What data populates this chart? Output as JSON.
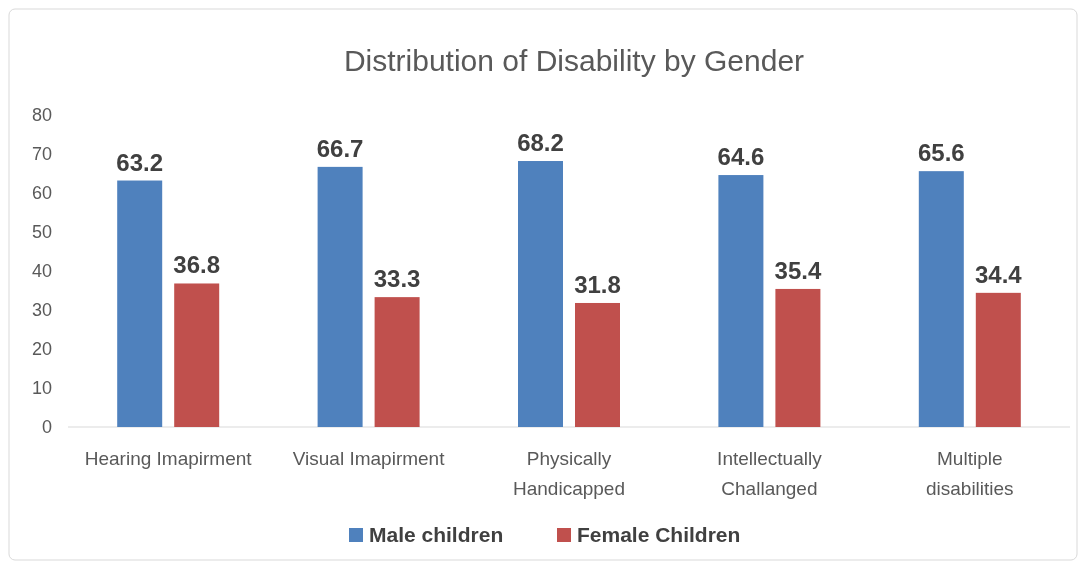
{
  "chart_data": {
    "type": "bar",
    "title": "Distribution of Disability by Gender",
    "categories": [
      "Hearing Imapirment",
      "Visual Imapirment",
      "Physically Handicapped",
      "Intellectually Challanged",
      "Multiple disabilities"
    ],
    "series": [
      {
        "name": "Male children",
        "color": "#4f81bd",
        "values": [
          63.2,
          66.7,
          68.2,
          64.6,
          65.6
        ]
      },
      {
        "name": "Female Children",
        "color": "#c0504d",
        "values": [
          36.8,
          33.3,
          31.8,
          35.4,
          34.4
        ]
      }
    ],
    "ylim": [
      0,
      80
    ],
    "yticks": [
      0,
      10,
      20,
      30,
      40,
      50,
      60,
      70,
      80
    ],
    "grid": false,
    "legend": "bottom",
    "data_labels": true
  }
}
